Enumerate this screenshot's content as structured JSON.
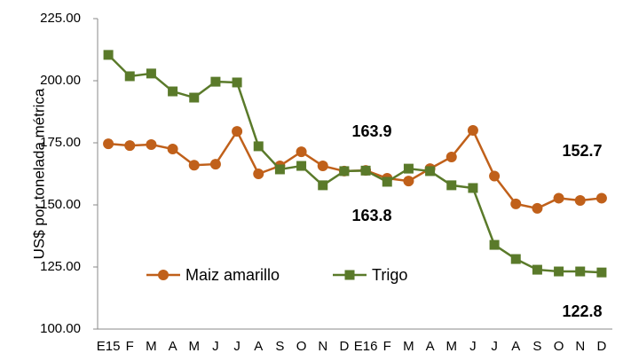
{
  "chart_data": {
    "type": "line",
    "y_label": "US$ por tonelada métrica",
    "categories": [
      "E15",
      "F",
      "M",
      "A",
      "M",
      "J",
      "J",
      "A",
      "S",
      "O",
      "N",
      "D",
      "E16",
      "F",
      "M",
      "A",
      "M",
      "J",
      "J",
      "A",
      "S",
      "O",
      "N",
      "D"
    ],
    "series": [
      {
        "name": "Maiz amarillo",
        "color": "#c0601a",
        "marker": "circle",
        "values": [
          174.6,
          173.9,
          174.3,
          172.5,
          166.0,
          166.4,
          179.6,
          162.5,
          165.7,
          171.4,
          165.7,
          163.6,
          163.9,
          160.7,
          159.6,
          164.6,
          169.3,
          180.0,
          161.6,
          150.4,
          148.6,
          152.7,
          151.8,
          152.7
        ]
      },
      {
        "name": "Trigo",
        "color": "#5a7a2a",
        "marker": "square",
        "values": [
          210.4,
          201.8,
          202.9,
          195.7,
          193.2,
          199.6,
          199.3,
          173.6,
          164.3,
          165.7,
          157.9,
          163.6,
          163.8,
          159.3,
          164.6,
          163.6,
          157.9,
          156.8,
          133.9,
          128.2,
          123.9,
          123.2,
          123.2,
          122.8
        ]
      }
    ],
    "annotations": [
      "163.9",
      "163.8",
      "152.7",
      "122.8"
    ],
    "ylim": [
      100,
      225
    ],
    "yticks": [
      {
        "value": 100,
        "label": "100.00"
      },
      {
        "value": 125,
        "label": "125.00"
      },
      {
        "value": 150,
        "label": "150.00"
      },
      {
        "value": 175,
        "label": "175.00"
      },
      {
        "value": 200,
        "label": "200.00"
      },
      {
        "value": 225,
        "label": "225.00"
      }
    ],
    "grid": false
  }
}
